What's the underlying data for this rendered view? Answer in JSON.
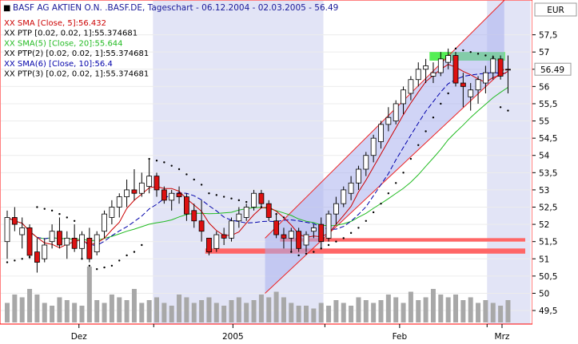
{
  "header": {
    "title": "BASF AG AKTIEN O.N. .BASF.DE, Tageschart - 06.12.2004 - 02.03.2005 - 56.49"
  },
  "legend": [
    {
      "text": "XX SMA [Close, 5]:56.432",
      "color": "#cc0000"
    },
    {
      "text": "XX PTP [0.02, 0.02, 1]:55.374681",
      "color": "#000000"
    },
    {
      "text": "XX SMA(5) [Close, 20]:55.644",
      "color": "#22bb22"
    },
    {
      "text": "XX PTP(2) [0.02, 0.02, 1]:55.374681",
      "color": "#000000"
    },
    {
      "text": "XX SMA(6) [Close, 10]:56.4",
      "color": "#0000aa"
    },
    {
      "text": "XX PTP(3) [0.02, 0.02, 1]:55.374681",
      "color": "#000000"
    }
  ],
  "currency": "EUR",
  "last_price_label": "56.49",
  "colors": {
    "border": "#ff0000",
    "bull": "#ffffff",
    "bear": "#dd1111",
    "sma5": "#cc0000",
    "sma10": "#0000aa",
    "sma20": "#22bb22",
    "channel_fill": "#aab0ee",
    "shade": "#e2e4f6",
    "volume": "#a8a8a8",
    "support": "#ff6666",
    "resistance": "#55ee55"
  },
  "chart_data": {
    "type": "candlestick",
    "y_ticks": [
      "49,5",
      "50",
      "50,5",
      "51",
      "51,5",
      "52",
      "52,5",
      "53",
      "53,5",
      "54",
      "54,5",
      "55",
      "55,5",
      "56",
      "56,5",
      "57",
      "57,5"
    ],
    "x_tick_labels": [
      "Dez",
      "2005",
      "Feb",
      "Mrz"
    ],
    "ylim": [
      49.2,
      58.0
    ],
    "candles": [
      {
        "o": 51.5,
        "h": 52.4,
        "l": 51.0,
        "c": 52.2
      },
      {
        "o": 52.2,
        "h": 52.5,
        "l": 51.8,
        "c": 52.0
      },
      {
        "o": 51.7,
        "h": 52.2,
        "l": 51.3,
        "c": 51.9
      },
      {
        "o": 51.9,
        "h": 52.0,
        "l": 51.0,
        "c": 51.1
      },
      {
        "o": 51.2,
        "h": 51.6,
        "l": 50.6,
        "c": 50.9
      },
      {
        "o": 51.0,
        "h": 51.6,
        "l": 50.9,
        "c": 51.4
      },
      {
        "o": 51.5,
        "h": 52.0,
        "l": 51.3,
        "c": 51.8
      },
      {
        "o": 51.8,
        "h": 52.2,
        "l": 51.3,
        "c": 51.4
      },
      {
        "o": 51.4,
        "h": 51.8,
        "l": 51.0,
        "c": 51.6
      },
      {
        "o": 51.6,
        "h": 52.0,
        "l": 51.2,
        "c": 51.3
      },
      {
        "o": 51.3,
        "h": 51.8,
        "l": 51.0,
        "c": 51.7
      },
      {
        "o": 51.6,
        "h": 51.9,
        "l": 50.9,
        "c": 51.0
      },
      {
        "o": 51.2,
        "h": 51.8,
        "l": 51.1,
        "c": 51.7
      },
      {
        "o": 51.8,
        "h": 52.4,
        "l": 51.6,
        "c": 52.3
      },
      {
        "o": 52.2,
        "h": 52.7,
        "l": 52.0,
        "c": 52.5
      },
      {
        "o": 52.5,
        "h": 52.9,
        "l": 52.2,
        "c": 52.8
      },
      {
        "o": 52.8,
        "h": 53.3,
        "l": 52.5,
        "c": 53.0
      },
      {
        "o": 53.0,
        "h": 53.6,
        "l": 52.7,
        "c": 52.9
      },
      {
        "o": 52.9,
        "h": 53.5,
        "l": 52.8,
        "c": 53.2
      },
      {
        "o": 53.1,
        "h": 53.9,
        "l": 52.9,
        "c": 53.4
      },
      {
        "o": 53.4,
        "h": 53.5,
        "l": 52.8,
        "c": 53.0
      },
      {
        "o": 53.0,
        "h": 53.1,
        "l": 52.6,
        "c": 52.7
      },
      {
        "o": 52.7,
        "h": 53.0,
        "l": 52.4,
        "c": 52.9
      },
      {
        "o": 52.9,
        "h": 53.1,
        "l": 52.6,
        "c": 52.8
      },
      {
        "o": 52.8,
        "h": 52.9,
        "l": 52.1,
        "c": 52.3
      },
      {
        "o": 52.4,
        "h": 52.6,
        "l": 51.9,
        "c": 52.1
      },
      {
        "o": 52.1,
        "h": 52.7,
        "l": 51.5,
        "c": 51.8
      },
      {
        "o": 51.6,
        "h": 51.6,
        "l": 51.1,
        "c": 51.2
      },
      {
        "o": 51.3,
        "h": 51.8,
        "l": 51.2,
        "c": 51.7
      },
      {
        "o": 51.7,
        "h": 51.9,
        "l": 51.4,
        "c": 51.6
      },
      {
        "o": 51.6,
        "h": 52.2,
        "l": 51.5,
        "c": 52.1
      },
      {
        "o": 52.1,
        "h": 52.5,
        "l": 51.9,
        "c": 52.3
      },
      {
        "o": 52.2,
        "h": 52.6,
        "l": 52.1,
        "c": 52.5
      },
      {
        "o": 52.5,
        "h": 53.0,
        "l": 52.4,
        "c": 52.9
      },
      {
        "o": 52.9,
        "h": 53.0,
        "l": 52.5,
        "c": 52.6
      },
      {
        "o": 52.6,
        "h": 52.7,
        "l": 52.1,
        "c": 52.2
      },
      {
        "o": 52.1,
        "h": 52.3,
        "l": 51.6,
        "c": 51.7
      },
      {
        "o": 51.7,
        "h": 51.9,
        "l": 51.3,
        "c": 51.6
      },
      {
        "o": 51.6,
        "h": 51.9,
        "l": 51.2,
        "c": 51.8
      },
      {
        "o": 51.8,
        "h": 51.9,
        "l": 51.2,
        "c": 51.3
      },
      {
        "o": 51.4,
        "h": 51.8,
        "l": 51.2,
        "c": 51.7
      },
      {
        "o": 51.8,
        "h": 52.0,
        "l": 51.6,
        "c": 51.9
      },
      {
        "o": 52.0,
        "h": 52.2,
        "l": 51.3,
        "c": 51.5
      },
      {
        "o": 51.6,
        "h": 52.4,
        "l": 51.5,
        "c": 52.3
      },
      {
        "o": 52.3,
        "h": 52.8,
        "l": 52.0,
        "c": 52.6
      },
      {
        "o": 52.6,
        "h": 53.1,
        "l": 52.5,
        "c": 53.0
      },
      {
        "o": 52.9,
        "h": 53.4,
        "l": 52.7,
        "c": 53.2
      },
      {
        "o": 53.2,
        "h": 53.7,
        "l": 53.0,
        "c": 53.6
      },
      {
        "o": 53.6,
        "h": 54.1,
        "l": 53.4,
        "c": 54.0
      },
      {
        "o": 54.0,
        "h": 54.6,
        "l": 53.8,
        "c": 54.5
      },
      {
        "o": 54.4,
        "h": 55.0,
        "l": 54.2,
        "c": 54.9
      },
      {
        "o": 54.9,
        "h": 55.4,
        "l": 54.7,
        "c": 55.1
      },
      {
        "o": 55.0,
        "h": 55.6,
        "l": 54.9,
        "c": 55.5
      },
      {
        "o": 55.5,
        "h": 56.0,
        "l": 55.2,
        "c": 55.9
      },
      {
        "o": 55.8,
        "h": 56.3,
        "l": 55.6,
        "c": 56.2
      },
      {
        "o": 56.2,
        "h": 56.7,
        "l": 56.0,
        "c": 56.5
      },
      {
        "o": 56.5,
        "h": 56.8,
        "l": 56.1,
        "c": 56.6
      },
      {
        "o": 56.3,
        "h": 56.7,
        "l": 56.1,
        "c": 56.4
      },
      {
        "o": 56.4,
        "h": 57.0,
        "l": 56.3,
        "c": 56.8
      },
      {
        "o": 56.7,
        "h": 57.1,
        "l": 56.5,
        "c": 56.9
      },
      {
        "o": 56.9,
        "h": 57.0,
        "l": 56.0,
        "c": 56.1
      },
      {
        "o": 56.1,
        "h": 56.4,
        "l": 55.4,
        "c": 56.0
      },
      {
        "o": 55.7,
        "h": 56.1,
        "l": 55.3,
        "c": 55.9
      },
      {
        "o": 55.9,
        "h": 56.3,
        "l": 55.5,
        "c": 56.2
      },
      {
        "o": 56.1,
        "h": 56.6,
        "l": 55.8,
        "c": 56.4
      },
      {
        "o": 56.4,
        "h": 56.9,
        "l": 56.2,
        "c": 56.8
      },
      {
        "o": 56.8,
        "h": 56.9,
        "l": 56.2,
        "c": 56.3
      },
      {
        "o": 56.5,
        "h": 56.9,
        "l": 55.8,
        "c": 56.49
      }
    ],
    "volume_rel": [
      0.35,
      0.5,
      0.45,
      0.6,
      0.5,
      0.35,
      0.3,
      0.45,
      0.4,
      0.35,
      0.3,
      1.0,
      0.4,
      0.35,
      0.5,
      0.45,
      0.4,
      0.6,
      0.35,
      0.4,
      0.45,
      0.35,
      0.3,
      0.5,
      0.45,
      0.35,
      0.4,
      0.45,
      0.35,
      0.3,
      0.4,
      0.45,
      0.35,
      0.4,
      0.5,
      0.45,
      0.55,
      0.45,
      0.35,
      0.3,
      0.3,
      0.25,
      0.35,
      0.3,
      0.4,
      0.35,
      0.3,
      0.45,
      0.4,
      0.35,
      0.4,
      0.5,
      0.45,
      0.35,
      0.55,
      0.4,
      0.45,
      0.6,
      0.5,
      0.45,
      0.5,
      0.4,
      0.45,
      0.35,
      0.4,
      0.35,
      0.3,
      0.4
    ],
    "sar": [
      50.9,
      50.95,
      51.0,
      51.05,
      52.5,
      52.45,
      52.4,
      52.3,
      52.2,
      52.1,
      51.0,
      50.8,
      50.7,
      50.75,
      50.8,
      50.95,
      51.1,
      51.2,
      51.4,
      53.9,
      53.85,
      53.8,
      53.7,
      53.6,
      53.45,
      53.3,
      53.15,
      52.9,
      52.85,
      52.8,
      52.75,
      52.7,
      52.65,
      52.6,
      52.5,
      52.4,
      52.3,
      52.2,
      51.2,
      51.1,
      51.15,
      51.2,
      51.3,
      51.4,
      51.5,
      51.6,
      51.75,
      51.9,
      52.1,
      52.35,
      52.6,
      52.9,
      53.2,
      53.5,
      53.9,
      54.3,
      54.7,
      55.1,
      55.5,
      55.8,
      57.1,
      57.05,
      57.0,
      56.95,
      56.9,
      56.85,
      55.4,
      55.3
    ],
    "support_zones": [
      [
        51.5,
        51.6
      ],
      [
        51.15,
        51.3
      ]
    ],
    "resistance_zone": [
      56.75,
      57.0
    ]
  }
}
